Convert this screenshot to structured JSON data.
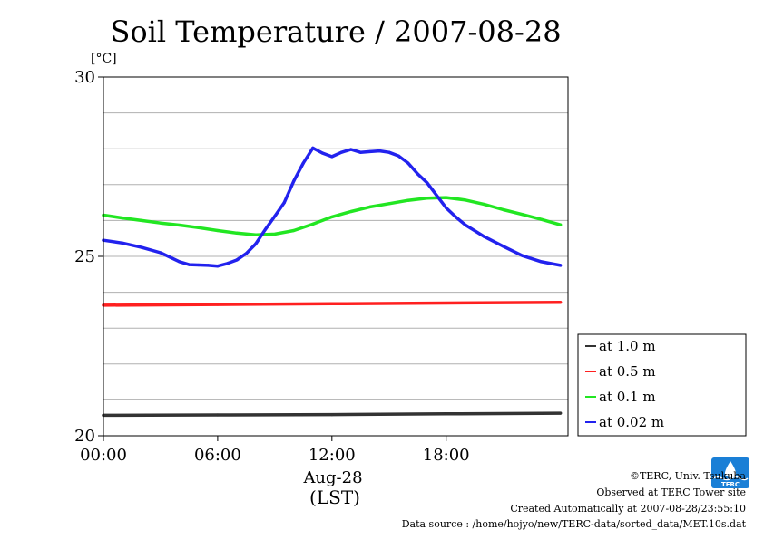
{
  "chart_data": {
    "type": "line",
    "title": "Soil Temperature / 2007-08-28",
    "ylabel": "[°C]",
    "xlabel_date": "Aug-28",
    "xlabel_unit": "(LST)",
    "ylim": [
      20,
      30
    ],
    "xlim": [
      0,
      24.4
    ],
    "y_ticks": [
      20,
      25,
      30
    ],
    "y_gridlines": [
      21,
      22,
      23,
      24,
      25,
      26,
      27,
      28,
      29
    ],
    "x_ticks": [
      {
        "value": 0,
        "label": "00:00"
      },
      {
        "value": 6,
        "label": "06:00"
      },
      {
        "value": 12,
        "label": "12:00"
      },
      {
        "value": 18,
        "label": "18:00"
      }
    ],
    "legend_position": "right",
    "series": [
      {
        "name": "at 1.0 m",
        "color": "#333333",
        "x": [
          0,
          6,
          12,
          18,
          24
        ],
        "y": [
          20.57,
          20.58,
          20.59,
          20.61,
          20.63
        ]
      },
      {
        "name": "at 0.5 m",
        "color": "#ff2020",
        "x": [
          0,
          6,
          12,
          18,
          24
        ],
        "y": [
          23.64,
          23.66,
          23.68,
          23.7,
          23.72
        ]
      },
      {
        "name": "at 0.1 m",
        "color": "#22e622",
        "x": [
          0,
          1,
          2,
          3,
          4,
          5,
          6,
          7,
          8,
          9,
          10,
          11,
          12,
          13,
          14,
          15,
          16,
          17,
          18,
          19,
          20,
          21,
          22,
          23,
          24
        ],
        "y": [
          26.15,
          26.07,
          26.0,
          25.93,
          25.87,
          25.8,
          25.72,
          25.65,
          25.6,
          25.62,
          25.72,
          25.9,
          26.1,
          26.25,
          26.38,
          26.47,
          26.56,
          26.62,
          26.64,
          26.57,
          26.45,
          26.3,
          26.17,
          26.03,
          25.88
        ]
      },
      {
        "name": "at 0.02 m",
        "color": "#2222ee",
        "x": [
          0,
          1,
          2,
          3,
          4,
          4.5,
          5,
          5.5,
          6,
          6.5,
          7,
          7.5,
          8,
          8.5,
          9,
          9.5,
          10,
          10.5,
          11,
          11.5,
          12,
          12.5,
          13,
          13.5,
          14,
          14.5,
          15,
          15.5,
          16,
          16.5,
          17,
          17.5,
          18,
          18.5,
          19,
          20,
          21,
          22,
          23,
          24
        ],
        "y": [
          25.45,
          25.37,
          25.25,
          25.1,
          24.85,
          24.77,
          24.76,
          24.75,
          24.73,
          24.8,
          24.9,
          25.08,
          25.35,
          25.75,
          26.12,
          26.5,
          27.1,
          27.6,
          28.02,
          27.88,
          27.78,
          27.9,
          27.98,
          27.9,
          27.92,
          27.94,
          27.9,
          27.8,
          27.6,
          27.3,
          27.05,
          26.7,
          26.35,
          26.1,
          25.88,
          25.55,
          25.28,
          25.02,
          24.85,
          24.75
        ]
      }
    ]
  },
  "credits": {
    "copyright": "©TERC, Univ. Tsukuba",
    "observed": "Observed at TERC Tower site",
    "created": "Created Automatically at 2007-08-28/23:55:10",
    "source": "Data source : /home/hojyo/new/TERC-data/sorted_data/MET.10s.dat"
  },
  "logo": {
    "text": "TERC",
    "color": "#1a7fd6"
  }
}
